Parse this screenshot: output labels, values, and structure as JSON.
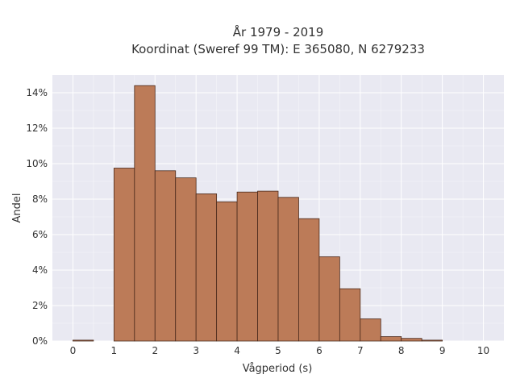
{
  "chart_data": {
    "type": "bar",
    "title_line1": "År 1979 - 2019",
    "title_line2": "Koordinat (Sweref 99 TM): E 365080, N 6279233",
    "xlabel": "Vågperiod (s)",
    "ylabel": "Andel",
    "xlim": [
      -0.5,
      10.5
    ],
    "ylim": [
      0,
      15
    ],
    "x_ticks": [
      0,
      1,
      2,
      3,
      4,
      5,
      6,
      7,
      8,
      9,
      10
    ],
    "x_tick_labels": [
      "0",
      "1",
      "2",
      "3",
      "4",
      "5",
      "6",
      "7",
      "8",
      "9",
      "10"
    ],
    "y_ticks": [
      0,
      2,
      4,
      6,
      8,
      10,
      12,
      14
    ],
    "y_tick_labels": [
      "0%",
      "2%",
      "4%",
      "6%",
      "8%",
      "10%",
      "12%",
      "14%"
    ],
    "grid": true,
    "bin_width": 0.5,
    "bins": [
      {
        "start": 0.0,
        "value": 0.05
      },
      {
        "start": 0.5,
        "value": 0.0
      },
      {
        "start": 1.0,
        "value": 9.75
      },
      {
        "start": 1.5,
        "value": 14.4
      },
      {
        "start": 2.0,
        "value": 9.6
      },
      {
        "start": 2.5,
        "value": 9.2
      },
      {
        "start": 3.0,
        "value": 8.3
      },
      {
        "start": 3.5,
        "value": 7.85
      },
      {
        "start": 4.0,
        "value": 8.4
      },
      {
        "start": 4.5,
        "value": 8.45
      },
      {
        "start": 5.0,
        "value": 8.1
      },
      {
        "start": 5.5,
        "value": 6.9
      },
      {
        "start": 6.0,
        "value": 4.75
      },
      {
        "start": 6.5,
        "value": 2.95
      },
      {
        "start": 7.0,
        "value": 1.25
      },
      {
        "start": 7.5,
        "value": 0.25
      },
      {
        "start": 8.0,
        "value": 0.15
      },
      {
        "start": 8.5,
        "value": 0.05
      }
    ]
  }
}
